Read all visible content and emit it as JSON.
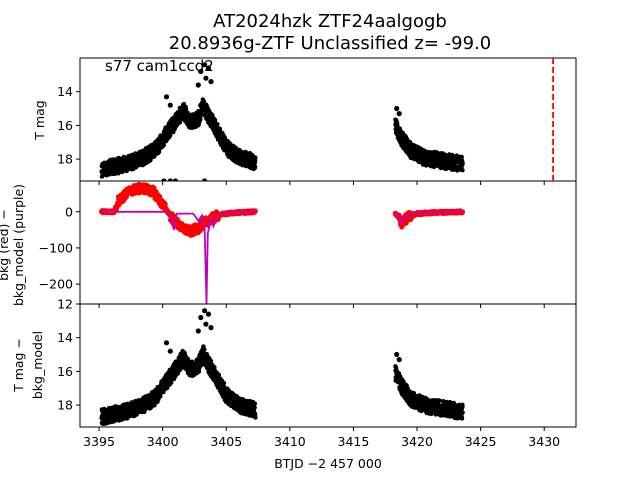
{
  "chart_data": {
    "type": "scatter",
    "title_line1": "AT2024hzk  ZTF24aalgogb",
    "title_line2": "20.8936g-ZTF Unclassified z= -99.0",
    "annotation": "s77 cam1ccd2",
    "xlabel": "BTJD −2 457 000",
    "xlim": [
      3393.5,
      3432.5
    ],
    "xticks": [
      3395,
      3400,
      3405,
      3410,
      3415,
      3420,
      3425,
      3430
    ],
    "marker_line_x": 3430.7,
    "colors": {
      "points": "#000000",
      "bkg": "#ff0000",
      "model": "#bf00bf",
      "marker_line": "#ff0000"
    },
    "segments": [
      {
        "x_start": 3395.2,
        "x_end": 3407.3
      },
      {
        "x_start": 3418.3,
        "x_end": 3423.6
      }
    ],
    "panels": [
      {
        "ylabel": "T mag",
        "ylim": [
          19.3,
          12.0
        ],
        "yticks": [
          14,
          16,
          18
        ],
        "series": "tmag"
      },
      {
        "ylabel_line1": "bkg (red) −",
        "ylabel_line2": "bkg_model (purple)",
        "ylim": [
          -255,
          85
        ],
        "yticks": [
          0,
          -100,
          -200
        ],
        "series": "bkg"
      },
      {
        "ylabel_line1": "T mag −",
        "ylabel_line2": "bkg_model",
        "ylim": [
          19.3,
          12.0
        ],
        "yticks": [
          12,
          14,
          16,
          18
        ],
        "series": "corrected"
      }
    ],
    "tmag_profile": [
      [
        3395.2,
        18.6
      ],
      [
        3396.5,
        18.4
      ],
      [
        3397.5,
        18.2
      ],
      [
        3398.5,
        17.9
      ],
      [
        3399.5,
        17.4
      ],
      [
        3400.3,
        16.5
      ],
      [
        3401.0,
        15.8
      ],
      [
        3401.6,
        15.1
      ],
      [
        3402.2,
        15.8
      ],
      [
        3402.8,
        15.6
      ],
      [
        3403.2,
        14.8
      ],
      [
        3403.6,
        15.5
      ],
      [
        3404.2,
        16.2
      ],
      [
        3405.0,
        17.3
      ],
      [
        3406.0,
        17.9
      ],
      [
        3407.3,
        18.2
      ],
      [
        3418.3,
        16.0
      ],
      [
        3418.8,
        16.8
      ],
      [
        3419.5,
        17.5
      ],
      [
        3420.5,
        17.9
      ],
      [
        3422.0,
        18.1
      ],
      [
        3423.6,
        18.3
      ]
    ],
    "tmag_bright_points": [
      [
        3403.0,
        12.8
      ],
      [
        3403.3,
        12.4
      ],
      [
        3403.6,
        12.6
      ],
      [
        3403.4,
        13.2
      ],
      [
        3402.8,
        13.6
      ],
      [
        3403.8,
        13.4
      ],
      [
        3400.3,
        14.3
      ],
      [
        3400.6,
        14.8
      ],
      [
        3418.4,
        15.0
      ],
      [
        3418.6,
        15.3
      ]
    ],
    "tmag_faint_points": [
      [
        3400.1,
        19.3
      ],
      [
        3400.6,
        19.3
      ],
      [
        3401.0,
        19.3
      ],
      [
        3403.3,
        19.3
      ]
    ],
    "bkg_profile": [
      [
        3395.2,
        0
      ],
      [
        3396.2,
        0
      ],
      [
        3396.5,
        30
      ],
      [
        3397.5,
        60
      ],
      [
        3398.5,
        65
      ],
      [
        3399.3,
        55
      ],
      [
        3399.8,
        30
      ],
      [
        3400.3,
        5
      ],
      [
        3400.8,
        -20
      ],
      [
        3401.5,
        -45
      ],
      [
        3402.2,
        -55
      ],
      [
        3402.8,
        -45
      ],
      [
        3403.3,
        -30
      ],
      [
        3403.8,
        -20
      ],
      [
        3404.5,
        -8
      ],
      [
        3405.5,
        -3
      ],
      [
        3407.3,
        0
      ],
      [
        3418.3,
        -5
      ],
      [
        3418.8,
        -30
      ],
      [
        3419.3,
        -15
      ],
      [
        3420.0,
        -5
      ],
      [
        3421.5,
        -2
      ],
      [
        3423.6,
        0
      ]
    ],
    "model_profile": [
      [
        3395.2,
        0
      ],
      [
        3400.2,
        0
      ],
      [
        3400.5,
        -8
      ],
      [
        3400.9,
        -50
      ],
      [
        3401.1,
        -5
      ],
      [
        3402.4,
        -5
      ],
      [
        3402.8,
        -25
      ],
      [
        3403.1,
        -10
      ],
      [
        3403.3,
        -40
      ],
      [
        3403.45,
        -255
      ],
      [
        3403.55,
        -60
      ],
      [
        3403.8,
        -20
      ],
      [
        3404.0,
        -40
      ],
      [
        3404.3,
        -10
      ],
      [
        3405.0,
        -3
      ],
      [
        3407.3,
        0
      ],
      [
        3418.3,
        0
      ],
      [
        3418.5,
        -15
      ],
      [
        3418.8,
        -30
      ],
      [
        3419.1,
        -10
      ],
      [
        3420.0,
        -3
      ],
      [
        3423.6,
        0
      ]
    ]
  }
}
